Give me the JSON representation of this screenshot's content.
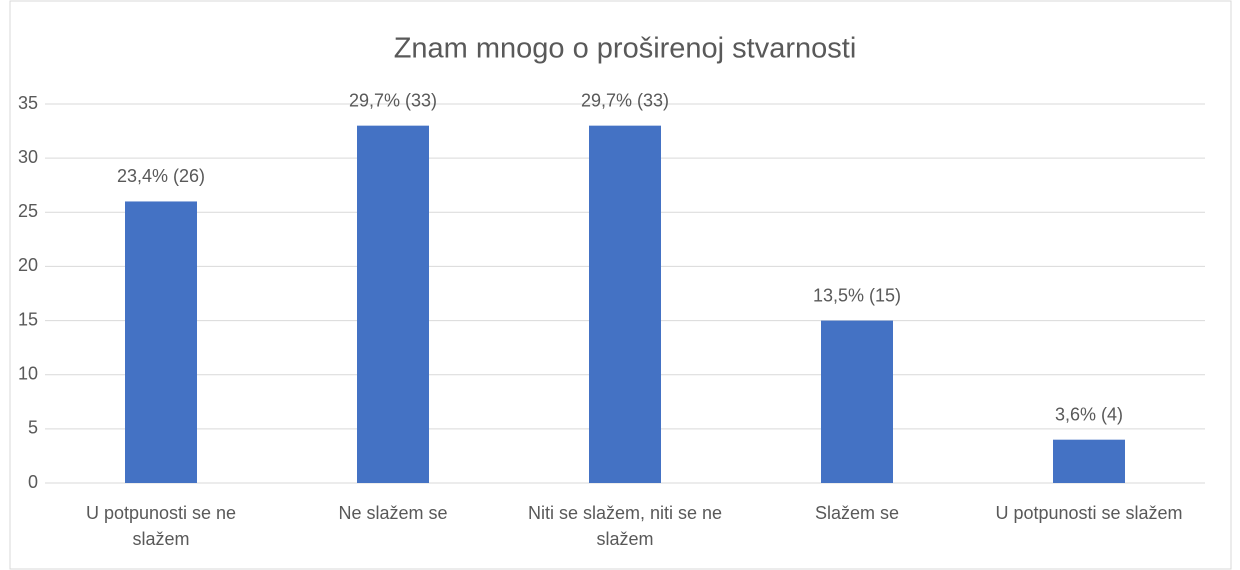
{
  "chart_data": {
    "type": "bar",
    "title": "Znam mnogo o proširenoj stvarnosti",
    "categories": [
      "U potpunosti se ne slažem",
      "Ne slažem se",
      "Niti se slažem, niti se ne slažem",
      "Slažem se",
      "U potpunosti se slažem"
    ],
    "values": [
      26,
      33,
      33,
      15,
      4
    ],
    "value_labels": [
      "23,4% (26)",
      "29,7% (33)",
      "29,7% (33)",
      "13,5% (15)",
      "3,6% (4)"
    ],
    "color": "#4472c4",
    "ylim": [
      0,
      35
    ],
    "yticks": [
      0,
      5,
      10,
      15,
      20,
      25,
      30,
      35
    ],
    "grid": true
  }
}
